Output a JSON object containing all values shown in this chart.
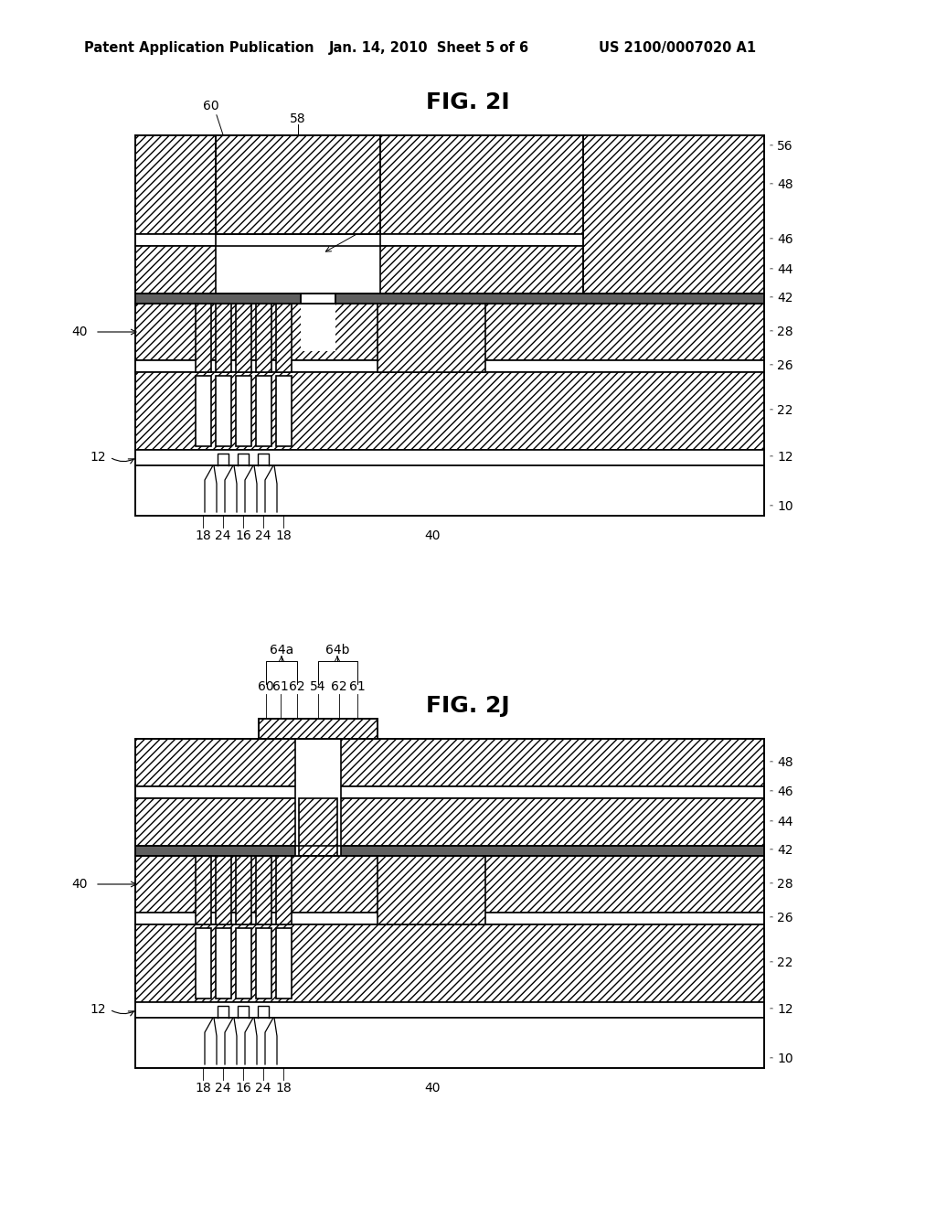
{
  "header_left": "Patent Application Publication",
  "header_mid": "Jan. 14, 2010  Sheet 5 of 6",
  "header_right": "US 2100/0007020 A1",
  "fig1_title": "FIG. 2I",
  "fig2_title": "FIG. 2J",
  "bg_color": "#ffffff",
  "line_color": "#000000",
  "hatch_dense": "////",
  "hatch_cross": "xxxx",
  "layer_labels_2I_right": [
    "56",
    "48",
    "46",
    "44",
    "42",
    "28",
    "26",
    "22",
    "12",
    "10"
  ],
  "layer_labels_2J_right": [
    "48",
    "46",
    "44",
    "42",
    "28",
    "26",
    "22",
    "12",
    "10"
  ],
  "bottom_labels": [
    "18",
    "24",
    "16",
    "24",
    "18",
    "40"
  ],
  "top_labels_2J": [
    "60",
    "61",
    "62",
    "54",
    "62",
    "61"
  ],
  "bracket_labels_2J": [
    "64a",
    "64b"
  ]
}
